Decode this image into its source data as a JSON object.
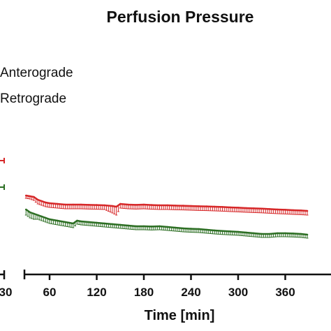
{
  "chart_data": {
    "type": "line",
    "title": "Perfusion  Pressure",
    "xlabel": "Time [min]",
    "ylabel": "",
    "xlim": [
      28,
      388
    ],
    "ylim": [
      0,
      100
    ],
    "x_ticks": [
      30,
      60,
      120,
      180,
      240,
      300,
      360
    ],
    "x_tick_labels": [
      "30",
      "60",
      "120",
      "180",
      "240",
      "300",
      "360"
    ],
    "legend": {
      "placement": "top-left",
      "entries": [
        "Anterograde",
        "Retrograde"
      ]
    },
    "series": [
      {
        "name": "Anterograde",
        "color": "#d62728",
        "errorbar_color": "#d62728",
        "errorbar_direction": "down",
        "x": [
          30,
          35,
          40,
          45,
          50,
          55,
          60,
          70,
          80,
          90,
          100,
          110,
          120,
          130,
          140,
          145,
          150,
          160,
          170,
          180,
          190,
          200,
          210,
          220,
          230,
          240,
          250,
          260,
          270,
          280,
          290,
          300,
          310,
          320,
          330,
          340,
          350,
          360,
          370,
          380,
          388
        ],
        "y": [
          45,
          44.5,
          44,
          42,
          41,
          40,
          39.5,
          39,
          38.5,
          38.5,
          38.5,
          38.3,
          38.2,
          38,
          37.5,
          37,
          39,
          38.5,
          38.3,
          38.5,
          38.2,
          38,
          38,
          37.8,
          37.7,
          37.5,
          37.3,
          37.2,
          37,
          36.8,
          36.5,
          36.3,
          36,
          35.8,
          35.6,
          35.3,
          35,
          34.8,
          34.5,
          34.3,
          34
        ],
        "err": [
          2,
          2,
          2.5,
          3,
          3,
          3,
          3,
          3,
          3,
          3,
          3,
          3,
          3,
          3,
          5,
          6,
          3,
          3,
          3,
          3,
          3,
          3,
          3,
          3,
          3,
          3,
          3,
          3,
          3,
          3,
          3,
          3,
          3,
          3,
          3,
          3,
          3,
          3,
          3,
          3,
          3
        ]
      },
      {
        "name": "Retrograde",
        "color": "#2c6e23",
        "errorbar_color": "#2c6e23",
        "errorbar_direction": "down",
        "x": [
          30,
          35,
          40,
          45,
          50,
          55,
          60,
          70,
          80,
          85,
          90,
          95,
          100,
          110,
          120,
          130,
          140,
          150,
          160,
          170,
          180,
          190,
          200,
          210,
          220,
          230,
          240,
          250,
          260,
          270,
          280,
          290,
          300,
          310,
          320,
          330,
          340,
          350,
          360,
          370,
          380,
          388
        ],
        "y": [
          35,
          33,
          32,
          31,
          30,
          29,
          28,
          27,
          26,
          25.5,
          25,
          27,
          26.5,
          26,
          25.5,
          25,
          24.5,
          24,
          23.5,
          23,
          23,
          22.8,
          23,
          22.5,
          22,
          21.5,
          21.2,
          21,
          20.5,
          20,
          19.6,
          19.3,
          19,
          18.5,
          18,
          17.5,
          17.5,
          18,
          18,
          17.8,
          17.5,
          17
        ],
        "err": [
          4,
          4,
          4,
          3,
          3,
          3,
          3,
          3,
          3,
          3,
          3,
          2.5,
          2.5,
          2.5,
          2.5,
          2.5,
          2.5,
          2.5,
          2.5,
          2.5,
          2.5,
          2.5,
          2.5,
          2.5,
          2.5,
          2.5,
          2.5,
          2.5,
          2.5,
          2.5,
          2.5,
          2.5,
          2.5,
          2.5,
          2.5,
          2.5,
          2.5,
          2.5,
          2.5,
          2.5,
          2.5,
          2.5
        ]
      }
    ],
    "axis_break": true,
    "left_tick_marks": 2,
    "grid": false
  }
}
